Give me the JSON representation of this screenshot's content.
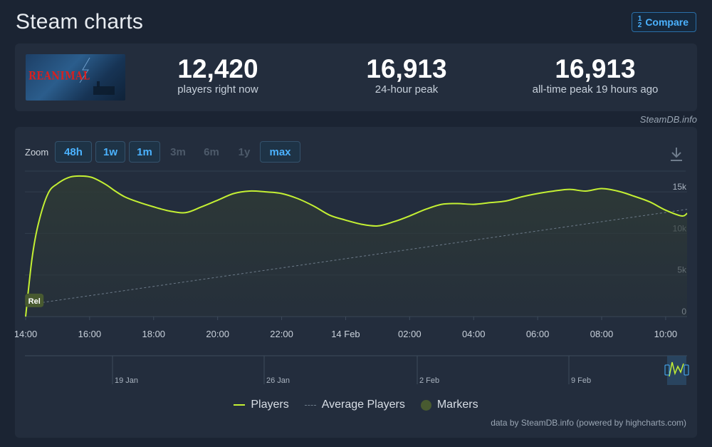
{
  "header": {
    "title": "Steam charts",
    "compare_label": "Compare",
    "compare_icon": "fraction-icon"
  },
  "game": {
    "logo_text": "REANIMAL"
  },
  "stats": [
    {
      "value": "12,420",
      "label": "players right now"
    },
    {
      "value": "16,913",
      "label": "24-hour peak"
    },
    {
      "value": "16,913",
      "label": "all-time peak 19 hours ago"
    }
  ],
  "credit_top": "SteamDB.info",
  "zoom": {
    "label": "Zoom",
    "buttons": [
      {
        "label": "48h",
        "enabled": true
      },
      {
        "label": "1w",
        "enabled": true
      },
      {
        "label": "1m",
        "enabled": true
      },
      {
        "label": "3m",
        "enabled": false
      },
      {
        "label": "6m",
        "enabled": false
      },
      {
        "label": "1y",
        "enabled": false
      },
      {
        "label": "max",
        "enabled": true
      }
    ]
  },
  "legend": {
    "players": "Players",
    "average": "Average Players",
    "markers": "Markers"
  },
  "credit_bottom": "data by SteamDB.info (powered by highcharts.com)",
  "colors": {
    "players_line": "#c4f033",
    "average_line": "#6d7b8a",
    "marker": "#485a30",
    "accent": "#4bb2ff"
  },
  "chart_data": {
    "type": "line",
    "x_ticks": [
      "14:00",
      "16:00",
      "18:00",
      "20:00",
      "22:00",
      "14 Feb",
      "02:00",
      "04:00",
      "06:00",
      "08:00",
      "10:00"
    ],
    "y_ticks": [
      "0",
      "5k",
      "10k",
      "15k"
    ],
    "ylim": [
      0,
      17500
    ],
    "grid": true,
    "series": [
      {
        "name": "Players",
        "x_hours": [
          0,
          0.2,
          0.4,
          0.7,
          1.0,
          1.4,
          1.8,
          2.1,
          2.5,
          2.8,
          3.1,
          3.5,
          4.0,
          4.5,
          5.0,
          5.5,
          6.0,
          6.5,
          7.0,
          7.5,
          8.0,
          8.5,
          9.0,
          9.5,
          10.0,
          10.5,
          11.0,
          11.5,
          12.0,
          12.5,
          13.0,
          13.5,
          14.0,
          14.5,
          15.0,
          15.5,
          16.0,
          16.5,
          17.0,
          17.5,
          18.0,
          18.5,
          19.0,
          19.5,
          20.0,
          20.5,
          20.67
        ],
        "values": [
          0,
          7000,
          11200,
          14800,
          16000,
          16800,
          16900,
          16700,
          15900,
          15100,
          14400,
          13800,
          13200,
          12700,
          12500,
          13200,
          14000,
          14800,
          15100,
          15000,
          14800,
          14200,
          13300,
          12200,
          11600,
          11100,
          10900,
          11400,
          12100,
          12900,
          13500,
          13600,
          13500,
          13700,
          13900,
          14400,
          14800,
          15100,
          15300,
          15100,
          15400,
          15100,
          14500,
          13800,
          12800,
          12100,
          12420
        ]
      },
      {
        "name": "Average Players",
        "x_hours": [
          0,
          20.67
        ],
        "values": [
          1400,
          12900
        ]
      }
    ],
    "markers": [
      {
        "label": "Rel",
        "x_hour": 0.25,
        "value": 1900
      }
    ],
    "navigator": {
      "labels": [
        "19 Jan",
        "26 Jan",
        "2 Feb",
        "9 Feb"
      ]
    }
  }
}
